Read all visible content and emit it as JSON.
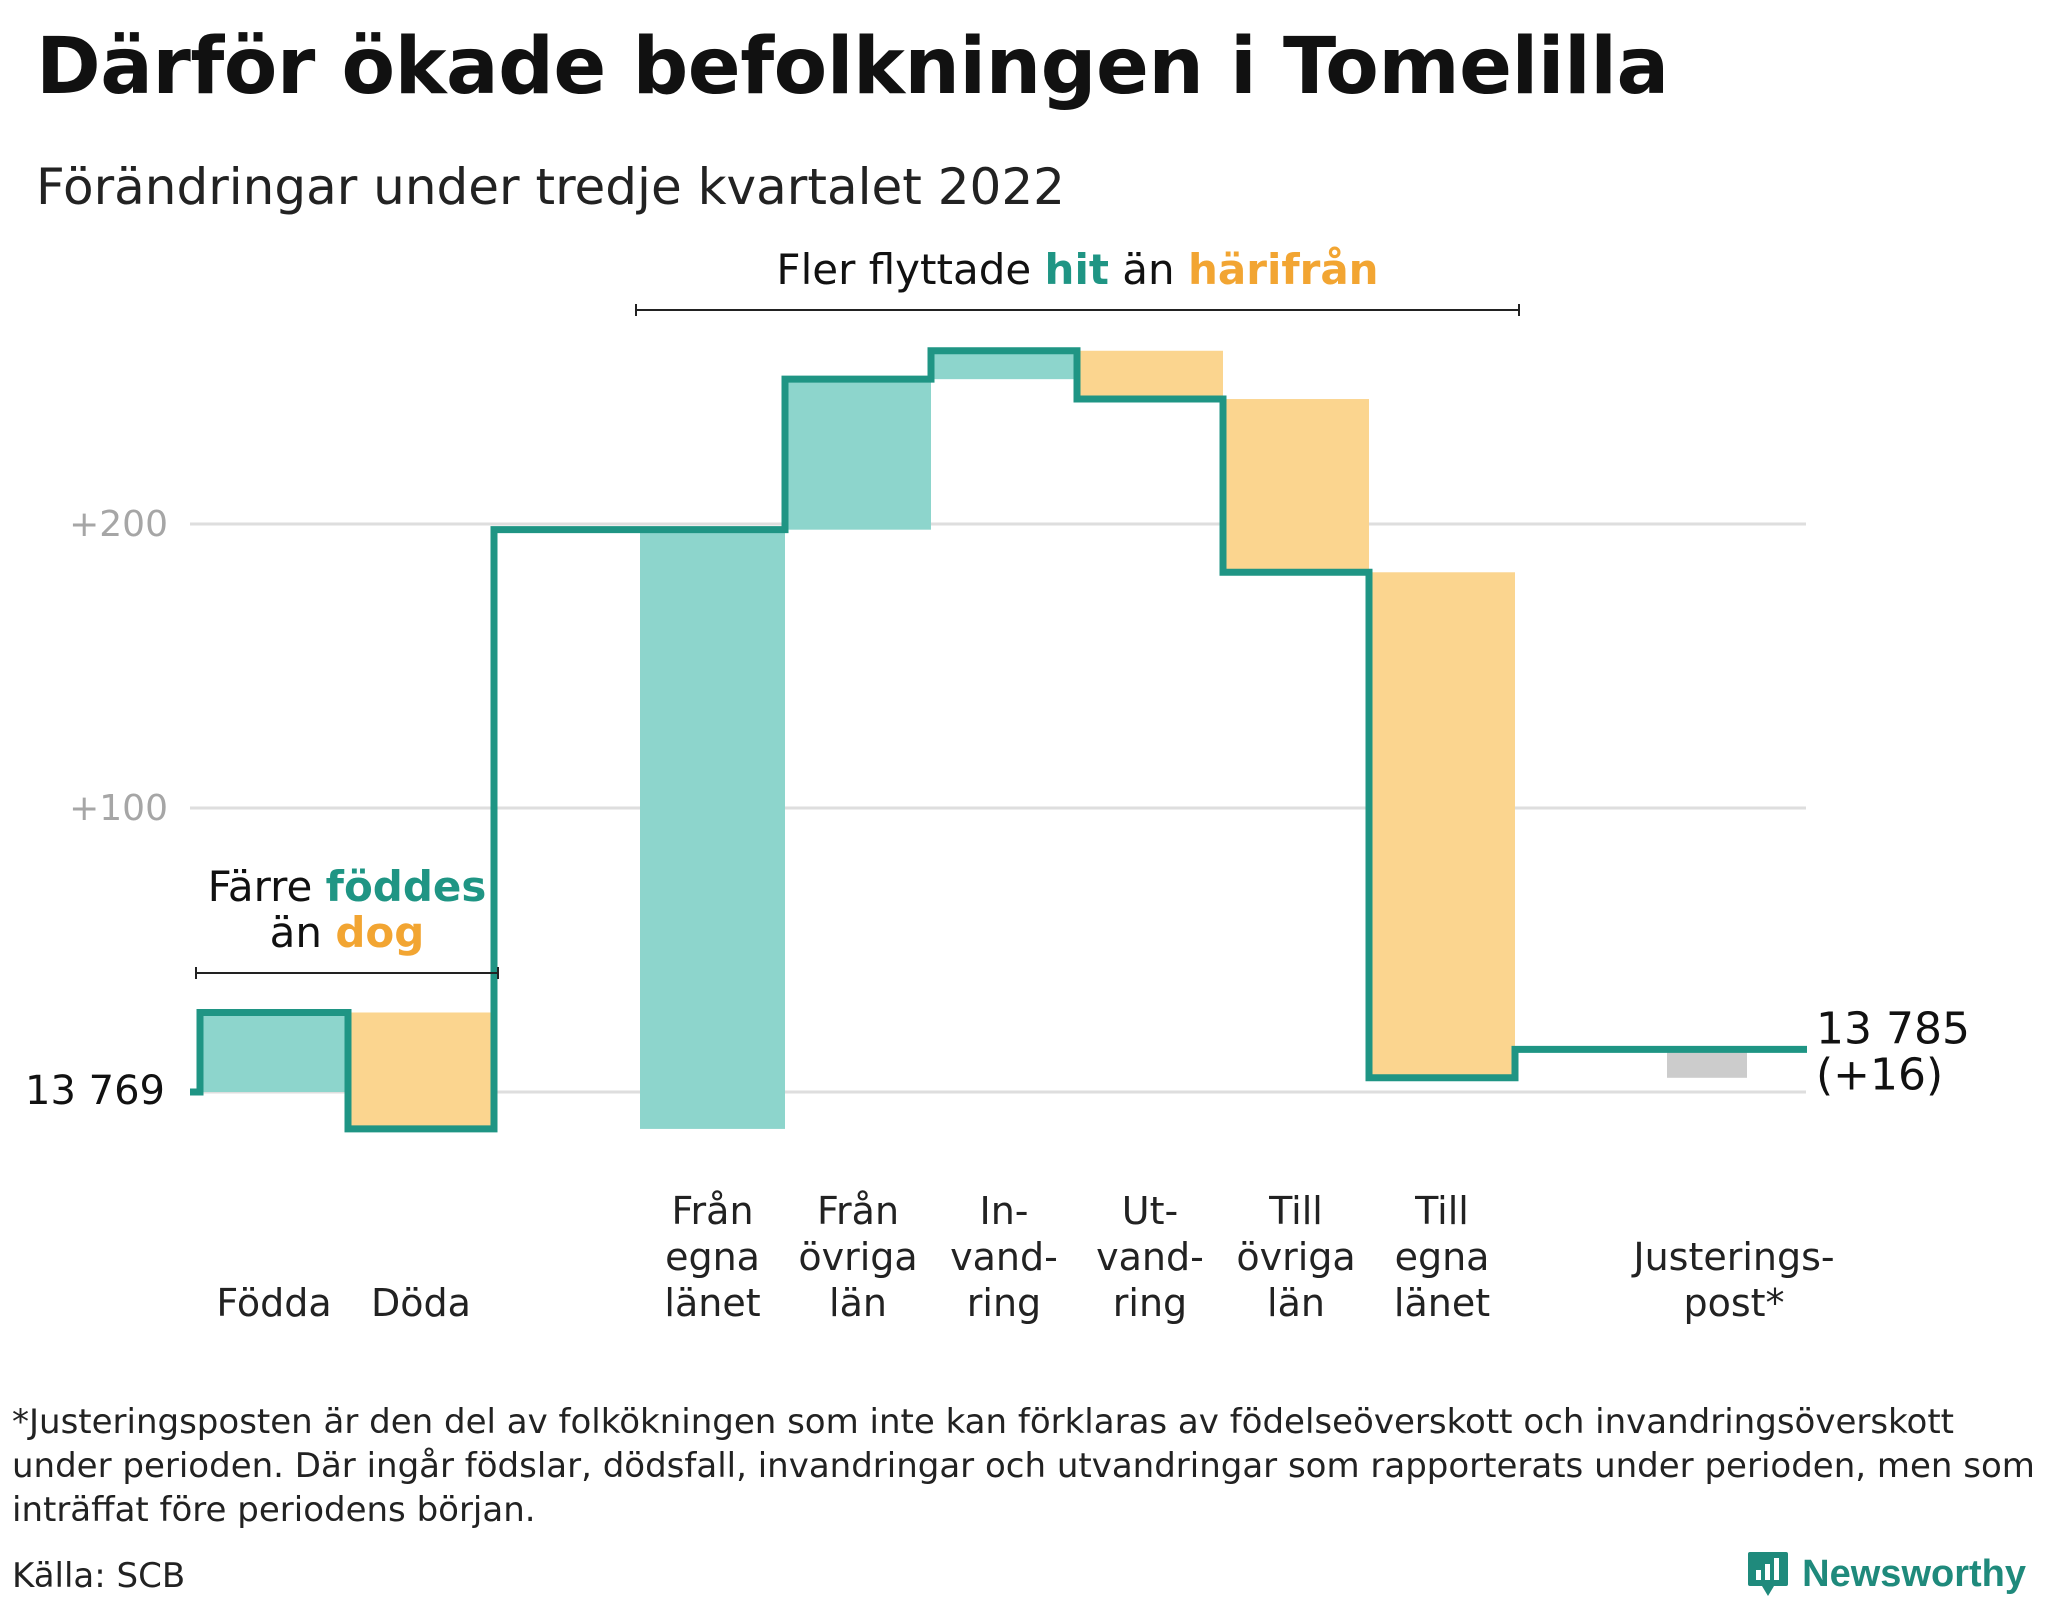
{
  "title": "Därför ökade befolkningen i Tomelilla",
  "subtitle": "Förändringar under tredje kvartalet 2022",
  "footnote": "*Justeringsposten är den del av folkökningen som inte kan förklaras av födelseöverskott och invandringsöverskott under perioden. Där ingår födslar, dödsfall, invandringar och utvandringar som rapporterats under perioden, men som inträffat före periodens början.",
  "source": "Källa: SCB",
  "brand": {
    "name": "Newsworthy",
    "icon": "newsworthy-logo-icon"
  },
  "colors": {
    "line": "#1f9584",
    "increase": "#8dd5cc",
    "decrease": "#fbd58f",
    "adjustment": "#cccccc",
    "grid": "#dedede",
    "hit": "#1f9584",
    "harifran": "#f2a532"
  },
  "chart_data": {
    "type": "waterfall",
    "start": {
      "value": 13769,
      "label": "13 769"
    },
    "end": {
      "value": 13785,
      "label": "13 785",
      "change_label": "(+16)"
    },
    "y_ticks": [
      {
        "value": 100,
        "label": "+100"
      },
      {
        "value": 200,
        "label": "+200"
      }
    ],
    "ylim": [
      -18,
      268
    ],
    "steps": [
      {
        "lines": [
          "Födda"
        ],
        "value": 28,
        "kind": "increase"
      },
      {
        "lines": [
          "Döda"
        ],
        "value": -41,
        "kind": "decrease"
      },
      {
        "lines": [
          "Från",
          "egna",
          "länet"
        ],
        "value": 211,
        "kind": "increase"
      },
      {
        "lines": [
          "Från",
          "övriga",
          "län"
        ],
        "value": 53,
        "kind": "increase"
      },
      {
        "lines": [
          "In-",
          "vand-",
          "ring"
        ],
        "value": 10,
        "kind": "increase"
      },
      {
        "lines": [
          "Ut-",
          "vand-",
          "ring"
        ],
        "value": -17,
        "kind": "decrease"
      },
      {
        "lines": [
          "Till",
          "övriga",
          "län"
        ],
        "value": -61,
        "kind": "decrease"
      },
      {
        "lines": [
          "Till",
          "egna",
          "länet"
        ],
        "value": -178,
        "kind": "decrease"
      },
      {
        "lines": [
          "Justerings-",
          "post*"
        ],
        "value": 10,
        "kind": "adjustment"
      }
    ],
    "annotations": [
      {
        "lines": [
          [
            {
              "text": "Färre ",
              "role": "plain"
            },
            {
              "text": "föddes",
              "role": "hit"
            }
          ],
          [
            {
              "text": "än ",
              "role": "plain"
            },
            {
              "text": "dog",
              "role": "harifran"
            }
          ]
        ],
        "from_step": 0,
        "to_step": 1
      },
      {
        "lines": [
          [
            {
              "text": "Fler flyttade ",
              "role": "plain"
            },
            {
              "text": "hit",
              "role": "hit"
            },
            {
              "text": " än ",
              "role": "plain"
            },
            {
              "text": "härifrån",
              "role": "harifran"
            }
          ]
        ],
        "from_step": 2,
        "to_step": 7
      }
    ]
  }
}
